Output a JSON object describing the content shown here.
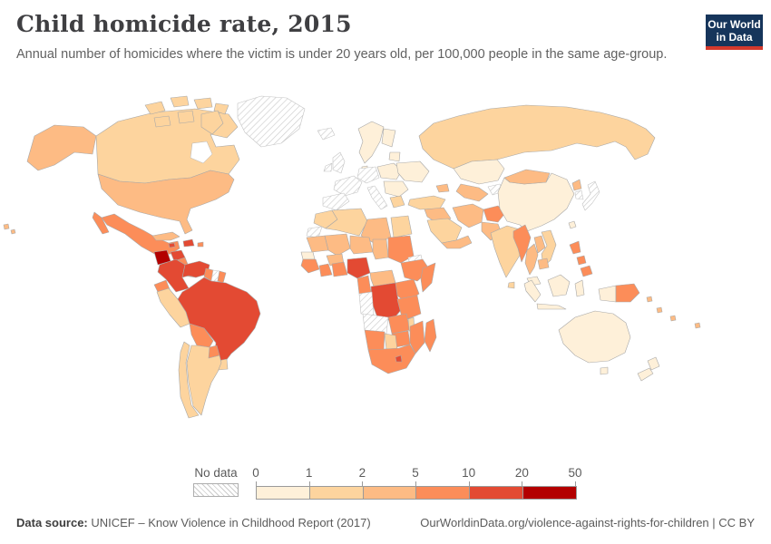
{
  "header": {
    "title": "Child homicide rate, 2015",
    "subtitle": "Annual number of homicides where the victim is under 20 years old, per 100,000 people in the same age-group.",
    "logo": {
      "line1": "Our World",
      "line2": "in Data",
      "bg_color": "#16355b",
      "accent_color": "#d4392c"
    }
  },
  "legend": {
    "no_data_label": "No data",
    "ticks": [
      "0",
      "1",
      "2",
      "5",
      "10",
      "20",
      "50"
    ]
  },
  "footer": {
    "source_label": "Data source:",
    "source_text": " UNICEF – Know Violence in Childhood Report (2017)",
    "credit_text": "OurWorldinData.org/violence-against-rights-for-children | CC BY"
  },
  "chart_data": {
    "type": "choropleth",
    "title": "Child homicide rate, 2015",
    "unit": "homicides per 100,000 people under 20 years old",
    "thresholds": [
      0,
      1,
      2,
      5,
      10,
      20,
      50
    ],
    "bins": [
      {
        "label": "0-1",
        "color": "#fef0d9"
      },
      {
        "label": "1-2",
        "color": "#fdd49e"
      },
      {
        "label": "2-5",
        "color": "#fdbb84"
      },
      {
        "label": "5-10",
        "color": "#fc8d59"
      },
      {
        "label": "10-20",
        "color": "#e34a33"
      },
      {
        "label": "20-50",
        "color": "#b30000"
      }
    ],
    "no_data_style": "gray-hatched",
    "regions": {
      "greenland": "no_data",
      "iceland": "no_data",
      "united-kingdom": "no_data",
      "ireland": "no_data",
      "france": "no_data",
      "germany": "no_data",
      "spain-portugal": "no_data",
      "italy": "no_data",
      "suriname": "no_data",
      "japan": "no_data",
      "south-korea": "no_data",
      "kyrgyzstan-tajikistan": "no_data",
      "western-sahara": "no_data",
      "eritrea-djibouti": "no_data",
      "gabon-congo": "no_data",
      "angola": "no_data",
      "norway-sweden": 0,
      "finland": 0,
      "denmark": 0,
      "baltics": 0,
      "poland-czechia": 0,
      "ukraine-belarus": 0,
      "romania-balkans": 0,
      "kazakhstan": 0,
      "china": 0,
      "taiwan": 0,
      "malaysia": 0,
      "sumatra": 0,
      "java": 0,
      "borneo": 0,
      "sulawesi": 0,
      "west-papua": 0,
      "australia": 0,
      "tasmania": 0,
      "new-zealand": 0,
      "senegal": 0,
      "canada": 1,
      "peru": 1,
      "chile": 1,
      "argentina": 1,
      "uruguay": 1,
      "russia": 1,
      "turkey": 1,
      "saudi-arabia": 1,
      "india": 1,
      "sri-lanka": 1,
      "vietnam": 1,
      "egypt": 1,
      "morocco": 1,
      "algeria": 1,
      "greece-albania": 1,
      "malawi": 1,
      "botswana": 1,
      "united-states": 2,
      "cuba": 2,
      "mauritania": 2,
      "mali": 2,
      "niger": 2,
      "chad": 2,
      "burkina-faso": 2,
      "central-african-republic": 2,
      "libya": 2,
      "pakistan": 2,
      "iran": 2,
      "iraq-syria": 2,
      "yemen-oman": 2,
      "caucasus": 2,
      "uzbekistan-turkmenistan": 2,
      "mongolia": 2,
      "north-korea": 2,
      "thailand": 2,
      "laos": 2,
      "cambodia": 2,
      "bangladesh": 2,
      "pacific-islands": 2,
      "mexico": 3,
      "nicaragua": 3,
      "costa-rica-panama": 3,
      "ecuador": 3,
      "bolivia": 3,
      "paraguay": 3,
      "guyana": 3,
      "french-guiana": 3,
      "puerto-rico": 3,
      "guinea-region": 3,
      "ivory-coast": 3,
      "ghana-benin": 3,
      "cameroon": 3,
      "sudan": 3,
      "ethiopia": 3,
      "somalia": 3,
      "uganda-kenya": 3,
      "tanzania": 3,
      "zambia": 3,
      "zimbabwe": 3,
      "mozambique": 3,
      "namibia": 3,
      "south-africa": 3,
      "madagascar": 3,
      "myanmar": 3,
      "afghanistan": 3,
      "philippines": 3,
      "papua-new-guinea": 3,
      "honduras": 4,
      "hispaniola": 4,
      "jamaica": 4,
      "colombia": 4,
      "venezuela": 4,
      "brazil": 4,
      "nigeria": 4,
      "dr-congo": 4,
      "lesotho": 4,
      "guatemala": 5
    }
  }
}
